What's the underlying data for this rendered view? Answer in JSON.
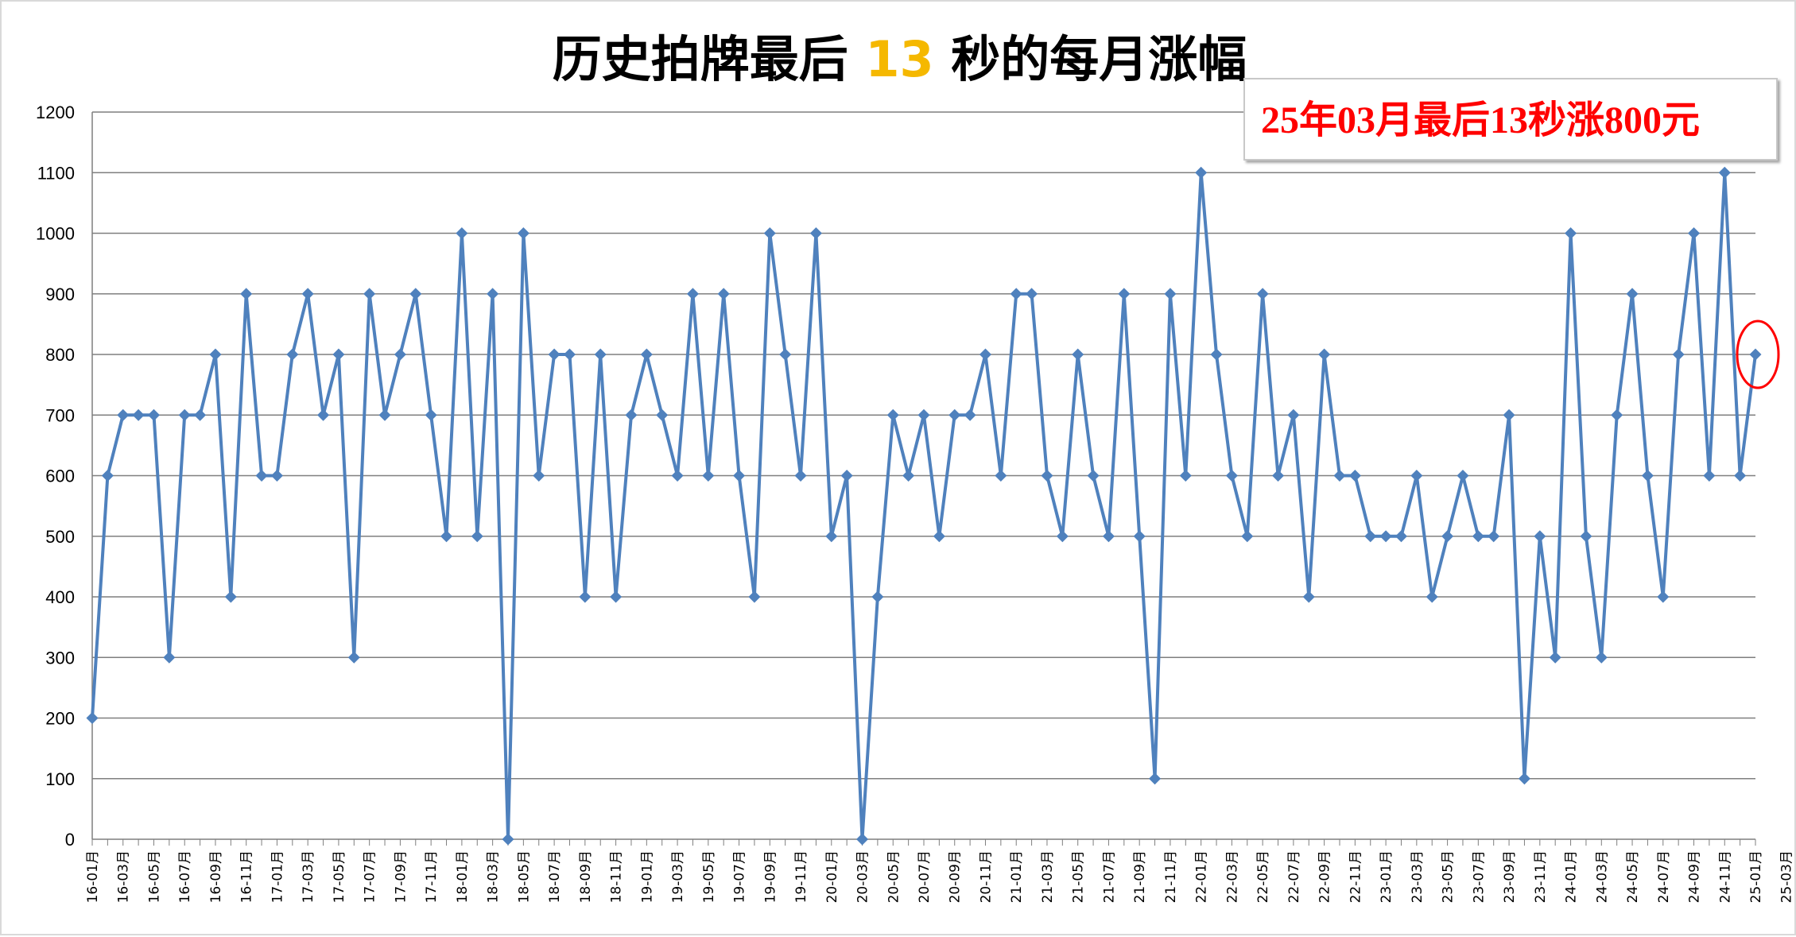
{
  "title": {
    "before": "历史拍牌最后 ",
    "highlight": "13",
    "after": " 秒的每月涨幅"
  },
  "callout": "25年03月最后13秒涨800元",
  "colors": {
    "line": "#4f81bd",
    "highlight": "#f5b800",
    "callout_text": "#ff0000",
    "marker_circle": "#ff0000",
    "grid": "#7f7f7f"
  },
  "chart_data": {
    "type": "line",
    "title": "历史拍牌最后 13 秒的每月涨幅",
    "xlabel": "",
    "ylabel": "",
    "ylim": [
      0,
      1200
    ],
    "yticks": [
      0,
      100,
      200,
      300,
      400,
      500,
      600,
      700,
      800,
      900,
      1000,
      1100,
      1200
    ],
    "grid": true,
    "legend": "none",
    "highlighted_point": "25-03月",
    "tick_labels": [
      "16-01月",
      "16-03月",
      "16-05月",
      "16-07月",
      "16-09月",
      "16-11月",
      "17-01月",
      "17-03月",
      "17-05月",
      "17-07月",
      "17-09月",
      "17-11月",
      "18-01月",
      "18-03月",
      "18-05月",
      "18-07月",
      "18-09月",
      "18-11月",
      "19-01月",
      "19-03月",
      "19-05月",
      "19-07月",
      "19-09月",
      "19-11月",
      "20-01月",
      "20-03月",
      "20-05月",
      "20-07月",
      "20-09月",
      "20-11月",
      "21-01月",
      "21-03月",
      "21-05月",
      "21-07月",
      "21-09月",
      "21-11月",
      "22-01月",
      "22-03月",
      "22-05月",
      "22-07月",
      "22-09月",
      "22-11月",
      "23-01月",
      "23-03月",
      "23-05月",
      "23-07月",
      "23-09月",
      "23-11月",
      "24-01月",
      "24-03月",
      "24-05月",
      "24-07月",
      "24-09月",
      "24-11月",
      "25-01月",
      "25-03月"
    ],
    "series": [
      {
        "values": [
          200,
          600,
          700,
          700,
          700,
          300,
          700,
          700,
          800,
          400,
          900,
          600,
          600,
          800,
          900,
          700,
          800,
          300,
          900,
          700,
          800,
          900,
          700,
          500,
          1000,
          500,
          900,
          0,
          1000,
          600,
          800,
          800,
          400,
          800,
          400,
          700,
          800,
          700,
          600,
          900,
          600,
          900,
          600,
          400,
          1000,
          800,
          600,
          1000,
          500,
          600,
          0,
          400,
          700,
          600,
          700,
          500,
          700,
          700,
          800,
          600,
          900,
          900,
          600,
          500,
          800,
          600,
          500,
          900,
          500,
          100,
          900,
          600,
          1100,
          800,
          600,
          500,
          900,
          600,
          700,
          400,
          800,
          600,
          600,
          500,
          500,
          500,
          600,
          400,
          500,
          600,
          500,
          500,
          700,
          100,
          500,
          300,
          1000,
          500,
          300,
          700,
          900,
          600,
          400,
          800,
          1000,
          600,
          1100,
          600,
          800
        ]
      }
    ]
  }
}
